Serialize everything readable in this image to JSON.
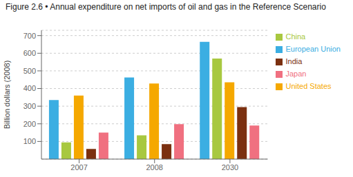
{
  "chart_data": {
    "type": "bar",
    "title": "Figure 2.6 • Annual expenditure on net imports of oil and gas in the Reference Scenario",
    "ylabel": "Billion dollars (2008)",
    "categories": [
      "2007",
      "2008",
      "2030"
    ],
    "series": [
      {
        "name": "European Union",
        "color": "#3BAEE2",
        "values": [
          335,
          463,
          665
        ]
      },
      {
        "name": "China",
        "color": "#A8C840",
        "values": [
          95,
          135,
          570
        ]
      },
      {
        "name": "United States",
        "color": "#F5A800",
        "values": [
          360,
          428,
          435
        ]
      },
      {
        "name": "India",
        "color": "#7B3010",
        "values": [
          58,
          85,
          295
        ]
      },
      {
        "name": "Japan",
        "color": "#F07080",
        "values": [
          150,
          198,
          190
        ]
      }
    ],
    "ylim": [
      0,
      730
    ],
    "yticks": [
      100,
      200,
      300,
      400,
      500,
      600,
      700
    ],
    "grid": true,
    "legend": "right"
  }
}
